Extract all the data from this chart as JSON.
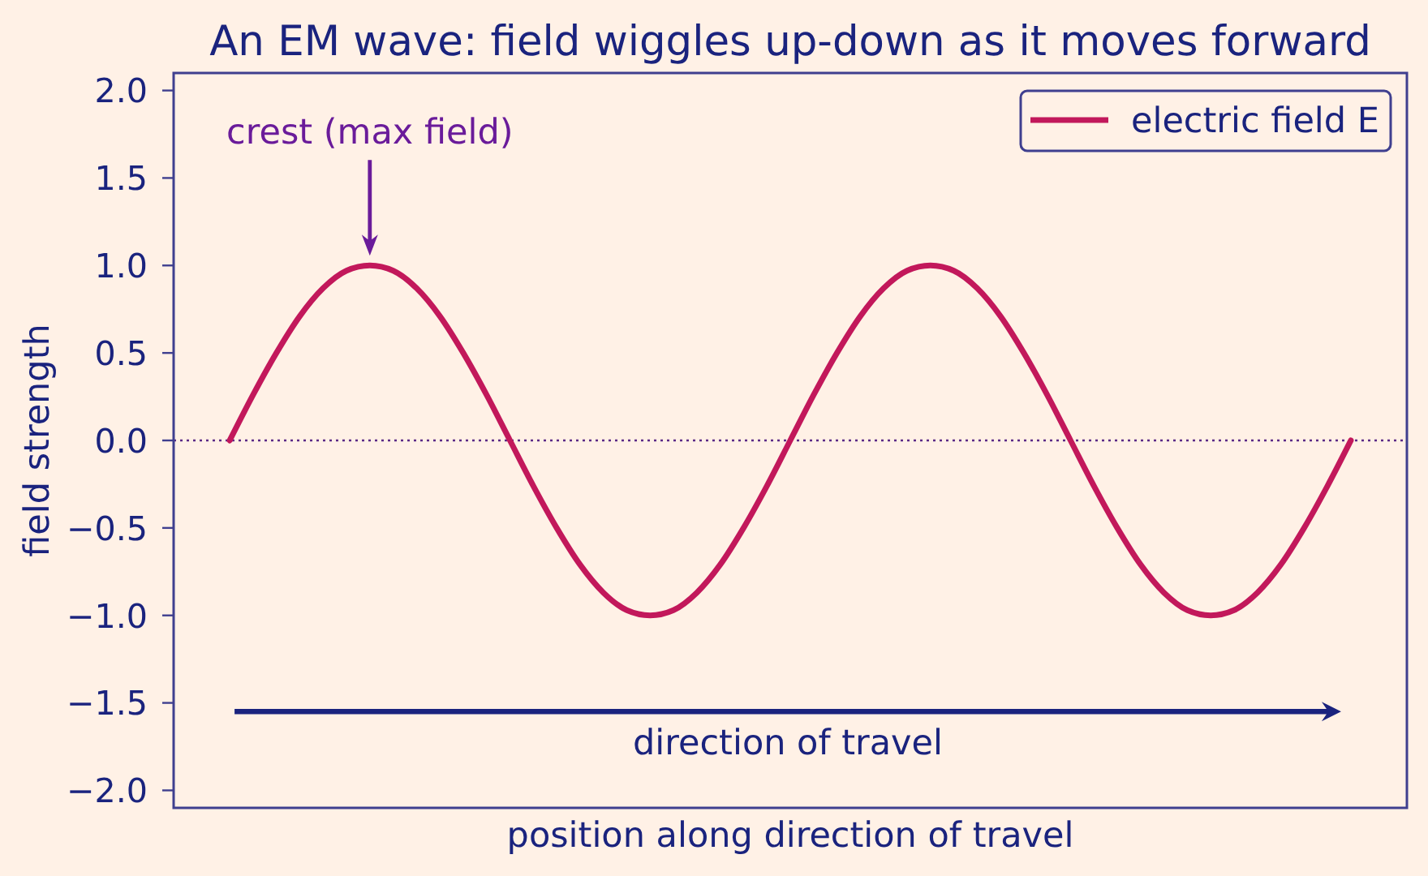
{
  "chart_data": {
    "type": "line",
    "title": "An EM wave: field wiggles up-down as it moves forward",
    "xlabel": "position along direction of travel",
    "ylabel": "field strength",
    "categories": [
      null,
      null,
      null,
      null,
      null,
      null,
      null,
      null,
      null,
      null,
      null,
      null,
      null,
      null,
      null,
      null,
      null,
      null,
      null,
      null,
      null,
      null,
      null,
      null,
      null,
      null,
      null,
      null,
      null,
      null,
      null,
      null,
      null,
      null,
      null,
      null,
      null,
      null,
      null,
      null,
      null,
      null,
      null,
      null,
      null,
      null,
      null,
      null,
      null
    ],
    "series": [
      {
        "name": "electric field E",
        "color": "#c2185b",
        "values": [
          0,
          0.26,
          0.5,
          0.71,
          0.87,
          0.97,
          1,
          0.97,
          0.87,
          0.71,
          0.5,
          0.26,
          0,
          -0.26,
          -0.5,
          -0.71,
          -0.87,
          -0.97,
          -1,
          -0.97,
          -0.87,
          -0.71,
          -0.5,
          -0.26,
          0,
          0.26,
          0.5,
          0.71,
          0.87,
          0.97,
          1,
          0.97,
          0.87,
          0.71,
          0.5,
          0.26,
          0,
          -0.26,
          -0.5,
          -0.71,
          -0.87,
          -0.97,
          -1,
          -0.97,
          -0.87,
          -0.71,
          -0.5,
          -0.26,
          0
        ]
      }
    ],
    "ylim": [
      -2.1,
      2.1
    ],
    "yticks": [
      {
        "value": -2,
        "label": "−2.0"
      },
      {
        "value": -1.5,
        "label": "−1.5"
      },
      {
        "value": -1,
        "label": "−1.0"
      },
      {
        "value": -0.5,
        "label": "−0.5"
      },
      {
        "value": 0,
        "label": "0.0"
      },
      {
        "value": 0.5,
        "label": "0.5"
      },
      {
        "value": 1,
        "label": "1.0"
      },
      {
        "value": 1.5,
        "label": "1.5"
      },
      {
        "value": 2,
        "label": "2.0"
      }
    ],
    "ref_lines": [
      {
        "axis": "y",
        "value": 0,
        "color": "#5b2a86",
        "line_style": "dotted"
      }
    ],
    "annotations": [
      "crest (max field)",
      "direction of travel"
    ],
    "legend": "top right",
    "tick_labels": "y",
    "line_style": "solid"
  }
}
